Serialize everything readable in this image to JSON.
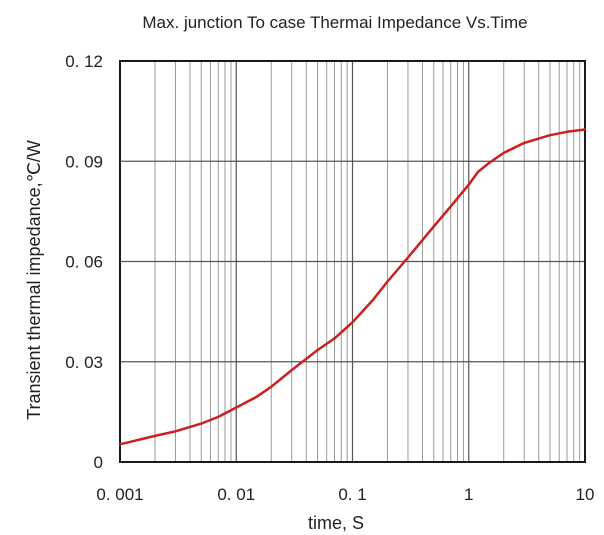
{
  "chart_data": {
    "type": "line",
    "title": "Max. junction To case Thermai Impedance Vs.Time",
    "xlabel": "time, S",
    "ylabel": "Transient thermal impedance,℃/W",
    "x_scale": "log",
    "xlim": [
      0.001,
      10
    ],
    "ylim": [
      0,
      0.12
    ],
    "x_ticks": [
      0.001,
      0.01,
      0.1,
      1,
      10
    ],
    "x_tick_labels": [
      "0. 001",
      "0. 01",
      "0. 1",
      "1",
      "10"
    ],
    "y_ticks": [
      0,
      0.03,
      0.06,
      0.09,
      0.12
    ],
    "y_tick_labels": [
      "0",
      "0. 03",
      "0. 06",
      "0. 09",
      "0. 12"
    ],
    "grid": true,
    "series": [
      {
        "color": "#cc1f1f",
        "x": [
          0.001,
          0.002,
          0.003,
          0.005,
          0.007,
          0.01,
          0.015,
          0.02,
          0.03,
          0.05,
          0.07,
          0.1,
          0.15,
          0.2,
          0.3,
          0.5,
          0.7,
          1,
          1.2,
          1.5,
          2,
          3,
          5,
          7,
          10
        ],
        "y": [
          0.0053,
          0.0078,
          0.0092,
          0.0115,
          0.0135,
          0.0163,
          0.0195,
          0.0225,
          0.0275,
          0.0335,
          0.037,
          0.0418,
          0.0485,
          0.054,
          0.0612,
          0.0705,
          0.0765,
          0.083,
          0.0868,
          0.0895,
          0.0925,
          0.0955,
          0.0978,
          0.0988,
          0.0995
        ]
      }
    ]
  }
}
